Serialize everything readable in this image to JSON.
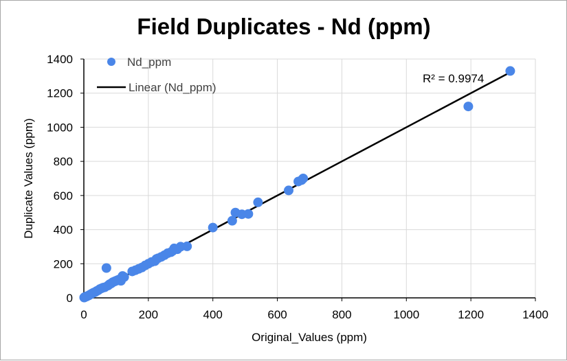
{
  "chart_data": {
    "type": "scatter",
    "title": "Field Duplicates  - Nd (ppm)",
    "xlabel": "Original_Values (ppm)",
    "ylabel": "Duplicate Values (ppm)",
    "xlim": [
      0,
      1400
    ],
    "ylim": [
      0,
      1400
    ],
    "xticks": [
      "0",
      "200",
      "400",
      "600",
      "800",
      "1000",
      "1200",
      "1400"
    ],
    "yticks": [
      "0",
      "200",
      "400",
      "600",
      "800",
      "1000",
      "1200",
      "1400"
    ],
    "grid": true,
    "legend_position": "top-left",
    "series": [
      {
        "name": "Nd_ppm",
        "color": "#4a86e8",
        "x": [
          1,
          2,
          3,
          5,
          8,
          10,
          15,
          20,
          25,
          30,
          35,
          40,
          45,
          50,
          55,
          60,
          65,
          70,
          75,
          80,
          85,
          90,
          95,
          100,
          105,
          110,
          115,
          120,
          125,
          150,
          160,
          170,
          180,
          190,
          200,
          210,
          220,
          225,
          230,
          240,
          250,
          260,
          270,
          275,
          280,
          290,
          300,
          320,
          400,
          460,
          470,
          490,
          510,
          540,
          635,
          665,
          675,
          680,
          1192,
          1322
        ],
        "y": [
          2,
          3,
          5,
          6,
          8,
          10,
          14,
          20,
          25,
          30,
          34,
          40,
          45,
          52,
          56,
          60,
          62,
          175,
          72,
          80,
          85,
          92,
          96,
          100,
          104,
          108,
          100,
          128,
          122,
          155,
          162,
          170,
          178,
          190,
          200,
          210,
          215,
          228,
          232,
          240,
          250,
          262,
          268,
          275,
          290,
          285,
          300,
          302,
          412,
          452,
          500,
          490,
          492,
          560,
          630,
          682,
          690,
          700,
          1122,
          1330
        ]
      }
    ],
    "trendline": {
      "name": "Linear (Nd_ppm)",
      "type": "linear",
      "color": "#000000",
      "x_range": [
        0,
        1322
      ],
      "slope": 1.0,
      "intercept": 0,
      "r_squared_label": "R² = 0.9974"
    }
  }
}
